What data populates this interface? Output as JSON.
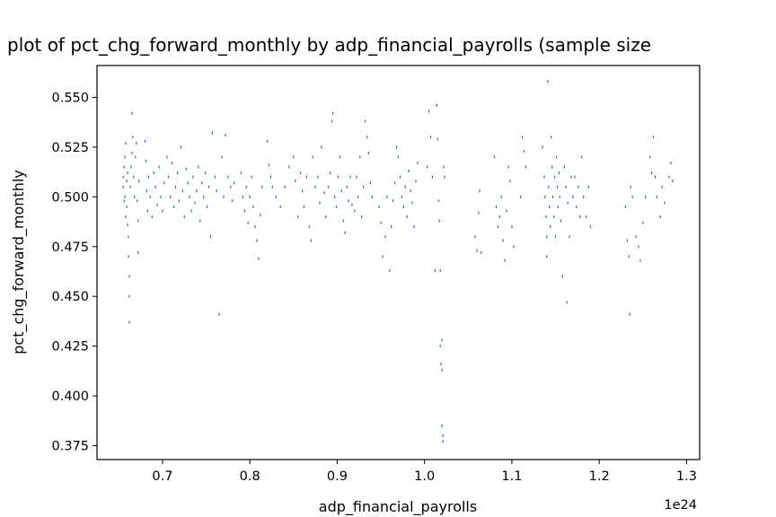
{
  "chart_data": {
    "type": "scatter",
    "title": "plot of pct_chg_forward_monthly by adp_financial_payrolls (sample size",
    "xlabel": "adp_financial_payrolls",
    "ylabel": "pct_chg_forward_monthly",
    "x_offset_label": "1e24",
    "xlim": [
      0.625,
      1.315
    ],
    "ylim": [
      0.368,
      0.566
    ],
    "x_ticks": [
      0.7,
      0.8,
      0.9,
      1.0,
      1.1,
      1.2,
      1.3
    ],
    "x_tick_labels": [
      "0.7",
      "0.8",
      "0.9",
      "1.0",
      "1.1",
      "1.2",
      "1.3"
    ],
    "y_ticks": [
      0.375,
      0.4,
      0.425,
      0.45,
      0.475,
      0.5,
      0.525,
      0.55
    ],
    "y_tick_labels": [
      "0.375",
      "0.400",
      "0.425",
      "0.450",
      "0.475",
      "0.500",
      "0.525",
      "0.550"
    ],
    "grid": false,
    "marker_color": "#1f77b4",
    "points": [
      [
        0.655,
        0.51
      ],
      [
        0.655,
        0.505
      ],
      [
        0.656,
        0.498
      ],
      [
        0.656,
        0.515
      ],
      [
        0.657,
        0.52
      ],
      [
        0.657,
        0.5
      ],
      [
        0.658,
        0.49
      ],
      [
        0.658,
        0.527
      ],
      [
        0.659,
        0.508
      ],
      [
        0.659,
        0.495
      ],
      [
        0.66,
        0.486
      ],
      [
        0.66,
        0.512
      ],
      [
        0.661,
        0.48
      ],
      [
        0.661,
        0.47
      ],
      [
        0.662,
        0.46
      ],
      [
        0.662,
        0.45
      ],
      [
        0.662,
        0.437
      ],
      [
        0.663,
        0.505
      ],
      [
        0.664,
        0.515
      ],
      [
        0.665,
        0.522
      ],
      [
        0.665,
        0.542
      ],
      [
        0.666,
        0.53
      ],
      [
        0.667,
        0.51
      ],
      [
        0.668,
        0.5
      ],
      [
        0.669,
        0.52
      ],
      [
        0.67,
        0.527
      ],
      [
        0.671,
        0.498
      ],
      [
        0.672,
        0.488
      ],
      [
        0.672,
        0.472
      ],
      [
        0.673,
        0.508
      ],
      [
        0.68,
        0.528
      ],
      [
        0.681,
        0.518
      ],
      [
        0.682,
        0.503
      ],
      [
        0.683,
        0.493
      ],
      [
        0.684,
        0.51
      ],
      [
        0.686,
        0.5
      ],
      [
        0.688,
        0.49
      ],
      [
        0.69,
        0.512
      ],
      [
        0.692,
        0.505
      ],
      [
        0.694,
        0.496
      ],
      [
        0.696,
        0.515
      ],
      [
        0.698,
        0.5
      ],
      [
        0.7,
        0.493
      ],
      [
        0.702,
        0.507
      ],
      [
        0.705,
        0.52
      ],
      [
        0.707,
        0.51
      ],
      [
        0.709,
        0.5
      ],
      [
        0.711,
        0.517
      ],
      [
        0.713,
        0.495
      ],
      [
        0.715,
        0.505
      ],
      [
        0.717,
        0.512
      ],
      [
        0.719,
        0.498
      ],
      [
        0.721,
        0.525
      ],
      [
        0.723,
        0.503
      ],
      [
        0.725,
        0.49
      ],
      [
        0.727,
        0.514
      ],
      [
        0.729,
        0.507
      ],
      [
        0.731,
        0.5
      ],
      [
        0.733,
        0.493
      ],
      [
        0.735,
        0.51
      ],
      [
        0.737,
        0.497
      ],
      [
        0.739,
        0.503
      ],
      [
        0.741,
        0.515
      ],
      [
        0.743,
        0.488
      ],
      [
        0.745,
        0.507
      ],
      [
        0.747,
        0.5
      ],
      [
        0.749,
        0.512
      ],
      [
        0.751,
        0.495
      ],
      [
        0.753,
        0.505
      ],
      [
        0.755,
        0.48
      ],
      [
        0.757,
        0.532
      ],
      [
        0.76,
        0.51
      ],
      [
        0.762,
        0.503
      ],
      [
        0.765,
        0.441
      ],
      [
        0.768,
        0.52
      ],
      [
        0.77,
        0.5
      ],
      [
        0.772,
        0.531
      ],
      [
        0.775,
        0.51
      ],
      [
        0.778,
        0.505
      ],
      [
        0.78,
        0.498
      ],
      [
        0.782,
        0.507
      ],
      [
        0.79,
        0.512
      ],
      [
        0.792,
        0.5
      ],
      [
        0.794,
        0.493
      ],
      [
        0.796,
        0.505
      ],
      [
        0.798,
        0.487
      ],
      [
        0.8,
        0.5
      ],
      [
        0.802,
        0.51
      ],
      [
        0.804,
        0.495
      ],
      [
        0.806,
        0.485
      ],
      [
        0.808,
        0.478
      ],
      [
        0.81,
        0.469
      ],
      [
        0.812,
        0.491
      ],
      [
        0.814,
        0.505
      ],
      [
        0.82,
        0.528
      ],
      [
        0.822,
        0.516
      ],
      [
        0.824,
        0.51
      ],
      [
        0.826,
        0.505
      ],
      [
        0.83,
        0.5
      ],
      [
        0.835,
        0.495
      ],
      [
        0.84,
        0.505
      ],
      [
        0.845,
        0.515
      ],
      [
        0.85,
        0.52
      ],
      [
        0.852,
        0.508
      ],
      [
        0.855,
        0.49
      ],
      [
        0.858,
        0.512
      ],
      [
        0.86,
        0.503
      ],
      [
        0.862,
        0.495
      ],
      [
        0.865,
        0.51
      ],
      [
        0.868,
        0.485
      ],
      [
        0.87,
        0.478
      ],
      [
        0.872,
        0.52
      ],
      [
        0.875,
        0.505
      ],
      [
        0.878,
        0.51
      ],
      [
        0.88,
        0.497
      ],
      [
        0.882,
        0.525
      ],
      [
        0.885,
        0.502
      ],
      [
        0.887,
        0.49
      ],
      [
        0.89,
        0.505
      ],
      [
        0.892,
        0.512
      ],
      [
        0.894,
        0.538
      ],
      [
        0.895,
        0.542
      ],
      [
        0.897,
        0.5
      ],
      [
        0.899,
        0.495
      ],
      [
        0.901,
        0.51
      ],
      [
        0.903,
        0.52
      ],
      [
        0.905,
        0.503
      ],
      [
        0.907,
        0.488
      ],
      [
        0.909,
        0.482
      ],
      [
        0.911,
        0.505
      ],
      [
        0.913,
        0.498
      ],
      [
        0.915,
        0.51
      ],
      [
        0.917,
        0.496
      ],
      [
        0.92,
        0.493
      ],
      [
        0.922,
        0.51
      ],
      [
        0.924,
        0.5
      ],
      [
        0.926,
        0.52
      ],
      [
        0.928,
        0.49
      ],
      [
        0.93,
        0.505
      ],
      [
        0.932,
        0.538
      ],
      [
        0.934,
        0.53
      ],
      [
        0.936,
        0.522
      ],
      [
        0.938,
        0.507
      ],
      [
        0.94,
        0.5
      ],
      [
        0.948,
        0.495
      ],
      [
        0.95,
        0.487
      ],
      [
        0.952,
        0.47
      ],
      [
        0.955,
        0.48
      ],
      [
        0.957,
        0.5
      ],
      [
        0.96,
        0.463
      ],
      [
        0.962,
        0.485
      ],
      [
        0.964,
        0.498
      ],
      [
        0.966,
        0.507
      ],
      [
        0.968,
        0.525
      ],
      [
        0.97,
        0.52
      ],
      [
        0.972,
        0.51
      ],
      [
        0.974,
        0.5
      ],
      [
        0.976,
        0.495
      ],
      [
        0.978,
        0.505
      ],
      [
        0.98,
        0.49
      ],
      [
        0.982,
        0.513
      ],
      [
        0.984,
        0.503
      ],
      [
        0.986,
        0.497
      ],
      [
        0.988,
        0.485
      ],
      [
        0.99,
        0.508
      ],
      [
        0.992,
        0.517
      ],
      [
        1.003,
        0.515
      ],
      [
        1.005,
        0.543
      ],
      [
        1.007,
        0.53
      ],
      [
        1.009,
        0.51
      ],
      [
        1.012,
        0.463
      ],
      [
        1.014,
        0.546
      ],
      [
        1.015,
        0.529
      ],
      [
        1.016,
        0.498
      ],
      [
        1.017,
        0.488
      ],
      [
        1.018,
        0.463
      ],
      [
        1.018,
        0.425
      ],
      [
        1.019,
        0.416
      ],
      [
        1.02,
        0.413
      ],
      [
        1.02,
        0.428
      ],
      [
        1.02,
        0.385
      ],
      [
        1.021,
        0.38
      ],
      [
        1.021,
        0.377
      ],
      [
        1.022,
        0.515
      ],
      [
        1.023,
        0.51
      ],
      [
        1.058,
        0.48
      ],
      [
        1.06,
        0.473
      ],
      [
        1.062,
        0.492
      ],
      [
        1.063,
        0.503
      ],
      [
        1.065,
        0.472
      ],
      [
        1.08,
        0.52
      ],
      [
        1.082,
        0.495
      ],
      [
        1.084,
        0.485
      ],
      [
        1.086,
        0.49
      ],
      [
        1.088,
        0.5
      ],
      [
        1.09,
        0.478
      ],
      [
        1.092,
        0.468
      ],
      [
        1.094,
        0.493
      ],
      [
        1.096,
        0.515
      ],
      [
        1.098,
        0.508
      ],
      [
        1.1,
        0.485
      ],
      [
        1.102,
        0.475
      ],
      [
        1.11,
        0.5
      ],
      [
        1.112,
        0.53
      ],
      [
        1.114,
        0.523
      ],
      [
        1.116,
        0.515
      ],
      [
        1.135,
        0.525
      ],
      [
        1.137,
        0.51
      ],
      [
        1.138,
        0.5
      ],
      [
        1.139,
        0.49
      ],
      [
        1.14,
        0.48
      ],
      [
        1.14,
        0.47
      ],
      [
        1.141,
        0.558
      ],
      [
        1.142,
        0.505
      ],
      [
        1.143,
        0.495
      ],
      [
        1.144,
        0.485
      ],
      [
        1.145,
        0.53
      ],
      [
        1.146,
        0.515
      ],
      [
        1.147,
        0.5
      ],
      [
        1.148,
        0.49
      ],
      [
        1.149,
        0.51
      ],
      [
        1.15,
        0.48
      ],
      [
        1.151,
        0.52
      ],
      [
        1.152,
        0.505
      ],
      [
        1.153,
        0.495
      ],
      [
        1.154,
        0.512
      ],
      [
        1.155,
        0.5
      ],
      [
        1.156,
        0.488
      ],
      [
        1.158,
        0.46
      ],
      [
        1.16,
        0.515
      ],
      [
        1.162,
        0.505
      ],
      [
        1.163,
        0.447
      ],
      [
        1.164,
        0.497
      ],
      [
        1.166,
        0.48
      ],
      [
        1.168,
        0.51
      ],
      [
        1.17,
        0.5
      ],
      [
        1.172,
        0.51
      ],
      [
        1.174,
        0.495
      ],
      [
        1.176,
        0.505
      ],
      [
        1.178,
        0.49
      ],
      [
        1.18,
        0.52
      ],
      [
        1.182,
        0.5
      ],
      [
        1.185,
        0.49
      ],
      [
        1.188,
        0.505
      ],
      [
        1.19,
        0.485
      ],
      [
        1.23,
        0.495
      ],
      [
        1.232,
        0.478
      ],
      [
        1.234,
        0.47
      ],
      [
        1.235,
        0.441
      ],
      [
        1.236,
        0.505
      ],
      [
        1.238,
        0.5
      ],
      [
        1.242,
        0.48
      ],
      [
        1.245,
        0.475
      ],
      [
        1.247,
        0.468
      ],
      [
        1.25,
        0.487
      ],
      [
        1.253,
        0.5
      ],
      [
        1.258,
        0.52
      ],
      [
        1.26,
        0.512
      ],
      [
        1.262,
        0.53
      ],
      [
        1.264,
        0.51
      ],
      [
        1.266,
        0.5
      ],
      [
        1.27,
        0.49
      ],
      [
        1.272,
        0.505
      ],
      [
        1.275,
        0.497
      ],
      [
        1.28,
        0.51
      ],
      [
        1.282,
        0.517
      ],
      [
        1.284,
        0.508
      ]
    ]
  }
}
